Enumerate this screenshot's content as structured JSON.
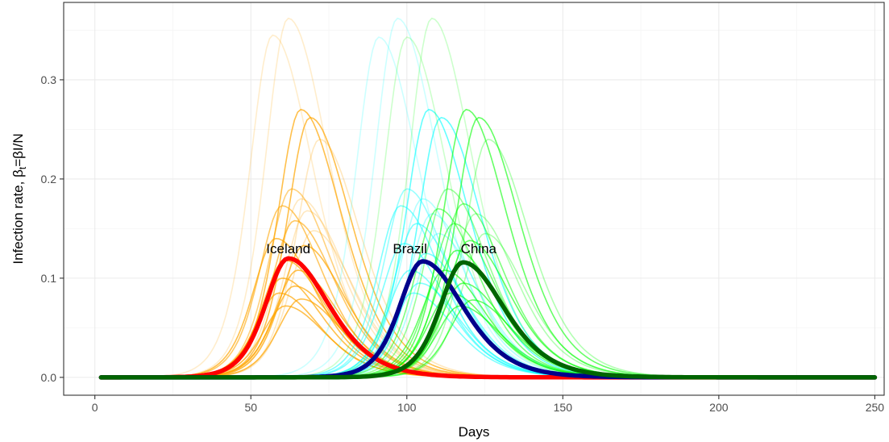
{
  "chart_data": {
    "type": "line",
    "xlabel": "Days",
    "ylabel": "Infection rate, βt=βI/N",
    "ylabel_parts": {
      "prefix": "Infection rate, β",
      "subscript": "t",
      "suffix": "=βI/N"
    },
    "xlim": [
      -10,
      253
    ],
    "ylim": [
      -0.018,
      0.378
    ],
    "x_ticks": [
      0,
      50,
      100,
      150,
      200,
      250
    ],
    "x_tick_labels": [
      "0",
      "50",
      "100",
      "150",
      "200",
      "250"
    ],
    "y_ticks": [
      0.0,
      0.1,
      0.2,
      0.3
    ],
    "y_tick_labels": [
      "0.0",
      "0.1",
      "0.2",
      "0.3"
    ],
    "grid": true,
    "colors": {
      "Iceland": "#ff0000",
      "Brazil": "#00008b",
      "China": "#006400",
      "ensemble_iceland": "#ffa500",
      "ensemble_brazil": "#00ffff",
      "ensemble_china": "#00ff00",
      "grid_major": "#ebebeb",
      "grid_minor": "#f5f5f5",
      "panel_border": "#333333"
    },
    "series": [
      {
        "name": "Iceland",
        "peak_day": 62,
        "peak_value": 0.12,
        "x": [
          2,
          30,
          40,
          50,
          55,
          62,
          70,
          80,
          90,
          100,
          120,
          150,
          200,
          250
        ],
        "y": [
          0,
          0.002,
          0.012,
          0.05,
          0.09,
          0.12,
          0.1,
          0.055,
          0.03,
          0.018,
          0.007,
          0.002,
          0,
          0
        ]
      },
      {
        "name": "Brazil",
        "peak_day": 105,
        "peak_value": 0.117,
        "x": [
          2,
          60,
          75,
          85,
          95,
          105,
          115,
          125,
          140,
          160,
          200,
          250
        ],
        "y": [
          0,
          0,
          0.003,
          0.02,
          0.07,
          0.117,
          0.09,
          0.05,
          0.02,
          0.007,
          0.001,
          0
        ]
      },
      {
        "name": "China",
        "peak_day": 118,
        "peak_value": 0.116,
        "x": [
          2,
          70,
          85,
          95,
          105,
          118,
          130,
          140,
          160,
          180,
          220,
          250
        ],
        "y": [
          0,
          0,
          0.003,
          0.015,
          0.06,
          0.116,
          0.095,
          0.06,
          0.025,
          0.01,
          0.002,
          0
        ]
      }
    ],
    "ensembles": [
      {
        "group": "ensemble_iceland",
        "curves": [
          {
            "peak_day": 57,
            "peak_value": 0.345,
            "opacity": 0.2
          },
          {
            "peak_day": 62,
            "peak_value": 0.362,
            "opacity": 0.2
          },
          {
            "peak_day": 66,
            "peak_value": 0.27,
            "opacity": 0.7
          },
          {
            "peak_day": 69,
            "peak_value": 0.262,
            "opacity": 0.7
          },
          {
            "peak_day": 72,
            "peak_value": 0.24,
            "opacity": 0.25
          },
          {
            "peak_day": 63,
            "peak_value": 0.19,
            "opacity": 0.5
          },
          {
            "peak_day": 66,
            "peak_value": 0.18,
            "opacity": 0.25
          },
          {
            "peak_day": 60,
            "peak_value": 0.173,
            "opacity": 0.6
          },
          {
            "peak_day": 68,
            "peak_value": 0.168,
            "opacity": 0.25
          },
          {
            "peak_day": 64,
            "peak_value": 0.158,
            "opacity": 0.6
          },
          {
            "peak_day": 70,
            "peak_value": 0.148,
            "opacity": 0.25
          },
          {
            "peak_day": 58,
            "peak_value": 0.14,
            "opacity": 0.7
          },
          {
            "peak_day": 67,
            "peak_value": 0.133,
            "opacity": 0.7
          },
          {
            "peak_day": 61,
            "peak_value": 0.118,
            "opacity": 0.7
          },
          {
            "peak_day": 65,
            "peak_value": 0.108,
            "opacity": 0.7
          },
          {
            "peak_day": 60,
            "peak_value": 0.1,
            "opacity": 0.7
          },
          {
            "peak_day": 64,
            "peak_value": 0.092,
            "opacity": 0.7
          },
          {
            "peak_day": 59,
            "peak_value": 0.085,
            "opacity": 0.7
          },
          {
            "peak_day": 66,
            "peak_value": 0.079,
            "opacity": 0.7
          },
          {
            "peak_day": 61,
            "peak_value": 0.072,
            "opacity": 0.7
          }
        ]
      },
      {
        "group": "ensemble_brazil",
        "curves": [
          {
            "peak_day": 91,
            "peak_value": 0.343,
            "opacity": 0.2
          },
          {
            "peak_day": 97,
            "peak_value": 0.362,
            "opacity": 0.2
          },
          {
            "peak_day": 107,
            "peak_value": 0.27,
            "opacity": 0.6
          },
          {
            "peak_day": 111,
            "peak_value": 0.262,
            "opacity": 0.6
          },
          {
            "peak_day": 100,
            "peak_value": 0.19,
            "opacity": 0.4
          },
          {
            "peak_day": 105,
            "peak_value": 0.18,
            "opacity": 0.3
          },
          {
            "peak_day": 98,
            "peak_value": 0.173,
            "opacity": 0.5
          },
          {
            "peak_day": 108,
            "peak_value": 0.165,
            "opacity": 0.3
          },
          {
            "peak_day": 103,
            "peak_value": 0.155,
            "opacity": 0.5
          },
          {
            "peak_day": 110,
            "peak_value": 0.145,
            "opacity": 0.3
          },
          {
            "peak_day": 99,
            "peak_value": 0.135,
            "opacity": 0.5
          },
          {
            "peak_day": 106,
            "peak_value": 0.125,
            "opacity": 0.5
          },
          {
            "peak_day": 101,
            "peak_value": 0.108,
            "opacity": 0.5
          },
          {
            "peak_day": 104,
            "peak_value": 0.095,
            "opacity": 0.5
          },
          {
            "peak_day": 102,
            "peak_value": 0.085,
            "opacity": 0.5
          }
        ]
      },
      {
        "group": "ensemble_china",
        "curves": [
          {
            "peak_day": 100,
            "peak_value": 0.343,
            "opacity": 0.2
          },
          {
            "peak_day": 108,
            "peak_value": 0.362,
            "opacity": 0.2
          },
          {
            "peak_day": 119,
            "peak_value": 0.27,
            "opacity": 0.6
          },
          {
            "peak_day": 123,
            "peak_value": 0.262,
            "opacity": 0.6
          },
          {
            "peak_day": 126,
            "peak_value": 0.24,
            "opacity": 0.3
          },
          {
            "peak_day": 113,
            "peak_value": 0.19,
            "opacity": 0.4
          },
          {
            "peak_day": 118,
            "peak_value": 0.175,
            "opacity": 0.5
          },
          {
            "peak_day": 110,
            "peak_value": 0.17,
            "opacity": 0.5
          },
          {
            "peak_day": 122,
            "peak_value": 0.165,
            "opacity": 0.3
          },
          {
            "peak_day": 115,
            "peak_value": 0.155,
            "opacity": 0.5
          },
          {
            "peak_day": 125,
            "peak_value": 0.145,
            "opacity": 0.3
          },
          {
            "peak_day": 120,
            "peak_value": 0.138,
            "opacity": 0.6
          },
          {
            "peak_day": 116,
            "peak_value": 0.128,
            "opacity": 0.6
          },
          {
            "peak_day": 112,
            "peak_value": 0.108,
            "opacity": 0.6
          },
          {
            "peak_day": 118,
            "peak_value": 0.095,
            "opacity": 0.6
          },
          {
            "peak_day": 114,
            "peak_value": 0.085,
            "opacity": 0.6
          },
          {
            "peak_day": 121,
            "peak_value": 0.078,
            "opacity": 0.6
          },
          {
            "peak_day": 117,
            "peak_value": 0.072,
            "opacity": 0.6
          }
        ]
      }
    ],
    "annotations": [
      {
        "text": "Iceland",
        "x": 62,
        "y": 0.125
      },
      {
        "text": "Brazil",
        "x": 101,
        "y": 0.125
      },
      {
        "text": "China",
        "x": 123,
        "y": 0.125
      }
    ]
  }
}
